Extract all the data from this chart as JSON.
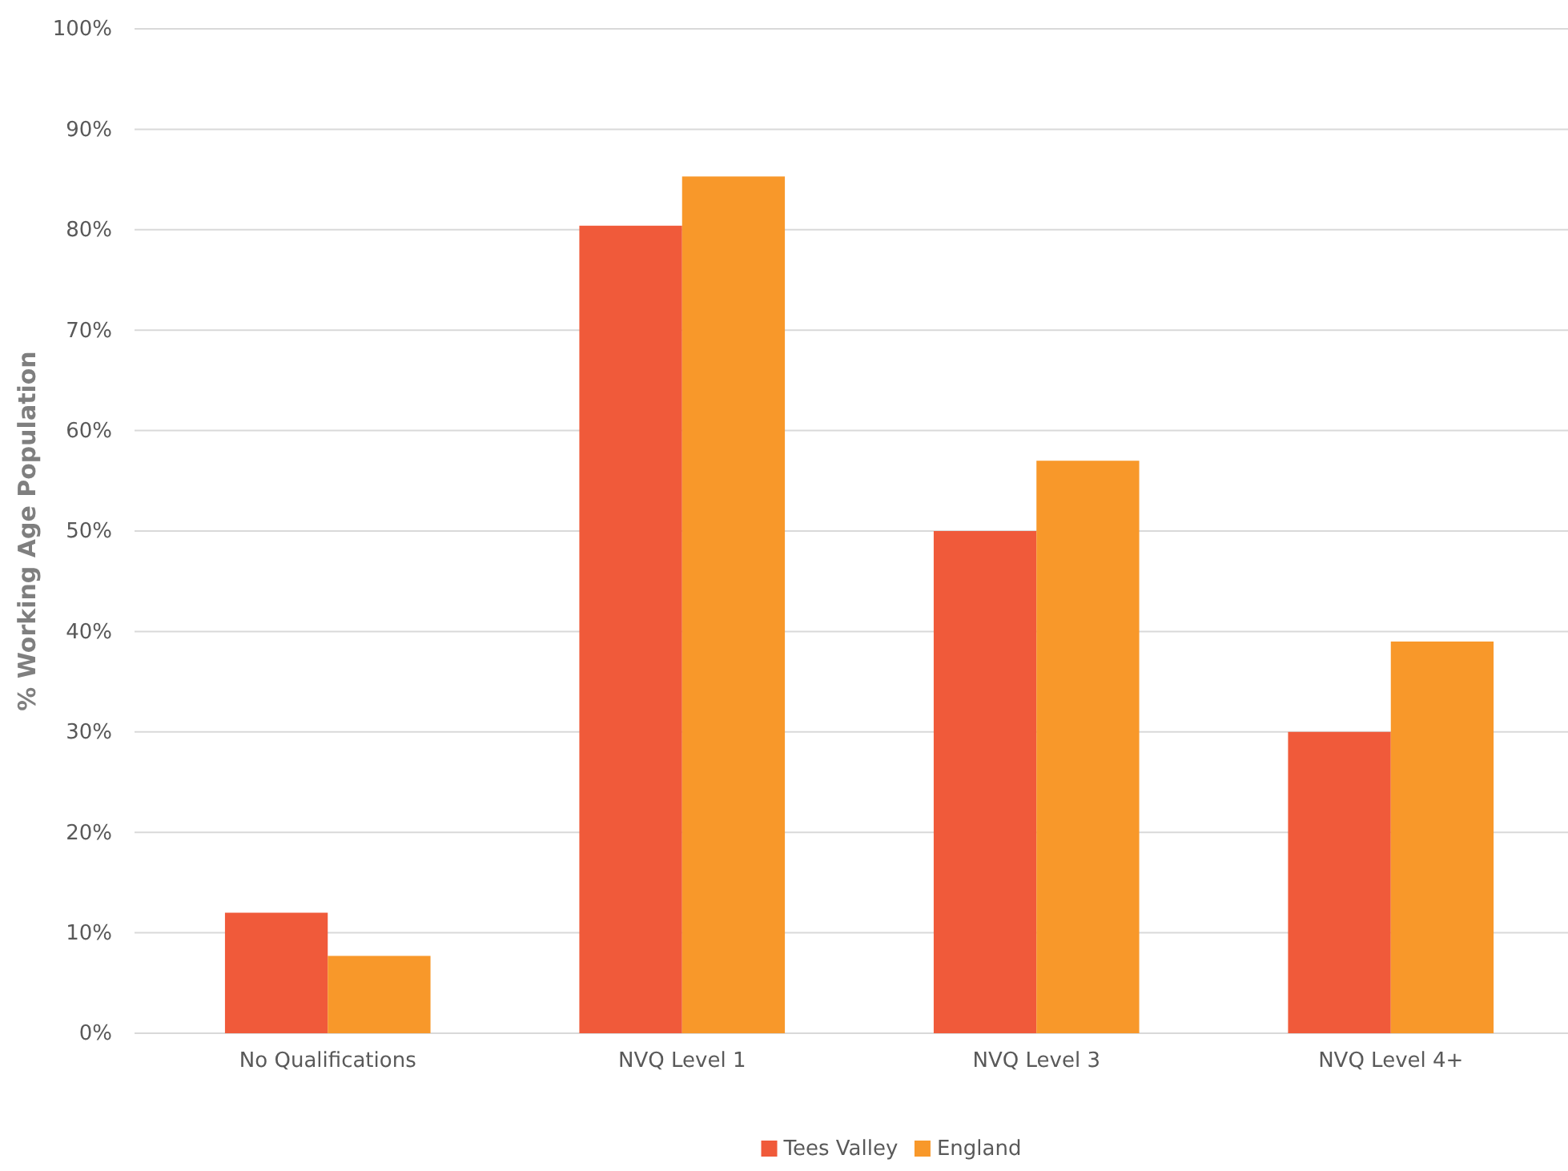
{
  "chart_data": {
    "type": "bar",
    "ylabel": "% Working Age Population",
    "categories": [
      "No Qualifications",
      "NVQ Level 1",
      "NVQ Level 3",
      "NVQ Level 4+"
    ],
    "series": [
      {
        "name": "Tees Valley",
        "color": "#f05a3a",
        "values": [
          12,
          80.4,
          50,
          30
        ]
      },
      {
        "name": "England",
        "color": "#f8982a",
        "values": [
          7.7,
          85.3,
          57,
          39
        ]
      }
    ],
    "ylim": [
      0,
      100
    ],
    "yticks": [
      {
        "value": 0,
        "label": "0%"
      },
      {
        "value": 10,
        "label": "10%"
      },
      {
        "value": 20,
        "label": "20%"
      },
      {
        "value": 30,
        "label": "30%"
      },
      {
        "value": 40,
        "label": "40%"
      },
      {
        "value": 50,
        "label": "50%"
      },
      {
        "value": 60,
        "label": "60%"
      },
      {
        "value": 70,
        "label": "70%"
      },
      {
        "value": 80,
        "label": "80%"
      },
      {
        "value": 90,
        "label": "90%"
      },
      {
        "value": 100,
        "label": "100%"
      }
    ],
    "grid": "y",
    "legend": "bottom"
  }
}
